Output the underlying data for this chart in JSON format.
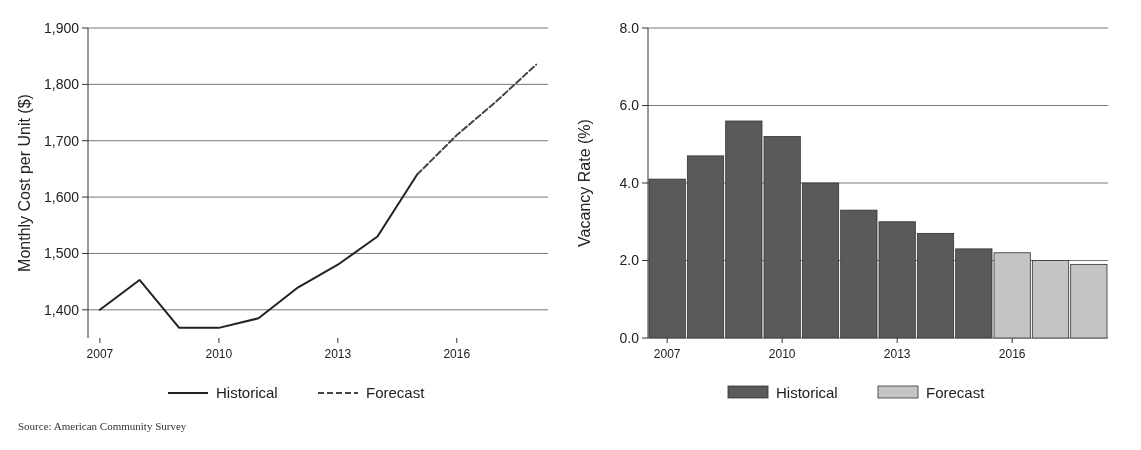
{
  "chart_data": [
    {
      "type": "line",
      "ylabel": "Monthly Cost per Unit ($)",
      "xlim": [
        2006.7,
        2018.3
      ],
      "ylim": [
        1350,
        1900
      ],
      "xticks": [
        2007,
        2010,
        2013,
        2016
      ],
      "yticks": [
        {
          "value": 1400,
          "label": "1,400"
        },
        {
          "value": 1500,
          "label": "1,500"
        },
        {
          "value": 1600,
          "label": "1,600"
        },
        {
          "value": 1700,
          "label": "1,700"
        },
        {
          "value": 1800,
          "label": "1,800"
        },
        {
          "value": 1900,
          "label": "1,900"
        }
      ],
      "grid": "y",
      "legend": "bottom",
      "series": [
        {
          "name": "Historical",
          "color": "#222222",
          "line_style": "solid",
          "x": [
            2007,
            2008,
            2009,
            2010,
            2011,
            2012,
            2013,
            2014,
            2015
          ],
          "values": [
            1400,
            1453,
            1368,
            1368,
            1385,
            1440,
            1480,
            1530,
            1640
          ]
        },
        {
          "name": "Forecast",
          "color": "#444444",
          "line_style": "dashed",
          "x": [
            2015,
            2016,
            2017,
            2018
          ],
          "values": [
            1640,
            1710,
            1770,
            1835
          ]
        }
      ],
      "annotations": [
        "Source: American Community Survey"
      ]
    },
    {
      "type": "bar",
      "ylabel": "Vacancy Rate (%)",
      "xlim": [
        2006.5,
        2018.5
      ],
      "ylim": [
        0,
        8
      ],
      "xticks": [
        2007,
        2010,
        2013,
        2016
      ],
      "yticks": [
        {
          "value": 0,
          "label": "0.0"
        },
        {
          "value": 2,
          "label": "2.0"
        },
        {
          "value": 4,
          "label": "4.0"
        },
        {
          "value": 6,
          "label": "6.0"
        },
        {
          "value": 8,
          "label": "8.0"
        }
      ],
      "grid": "y",
      "legend": "bottom",
      "series": [
        {
          "name": "Historical",
          "color": "#5a5a5a",
          "x": [
            2007,
            2008,
            2009,
            2010,
            2011,
            2012,
            2013,
            2014,
            2015
          ],
          "values": [
            4.1,
            4.7,
            5.6,
            5.2,
            4.0,
            3.3,
            3.0,
            2.7,
            2.3
          ]
        },
        {
          "name": "Forecast",
          "color": "#c4c4c4",
          "x": [
            2016,
            2017,
            2018
          ],
          "values": [
            2.2,
            2.0,
            1.9
          ]
        }
      ]
    }
  ]
}
